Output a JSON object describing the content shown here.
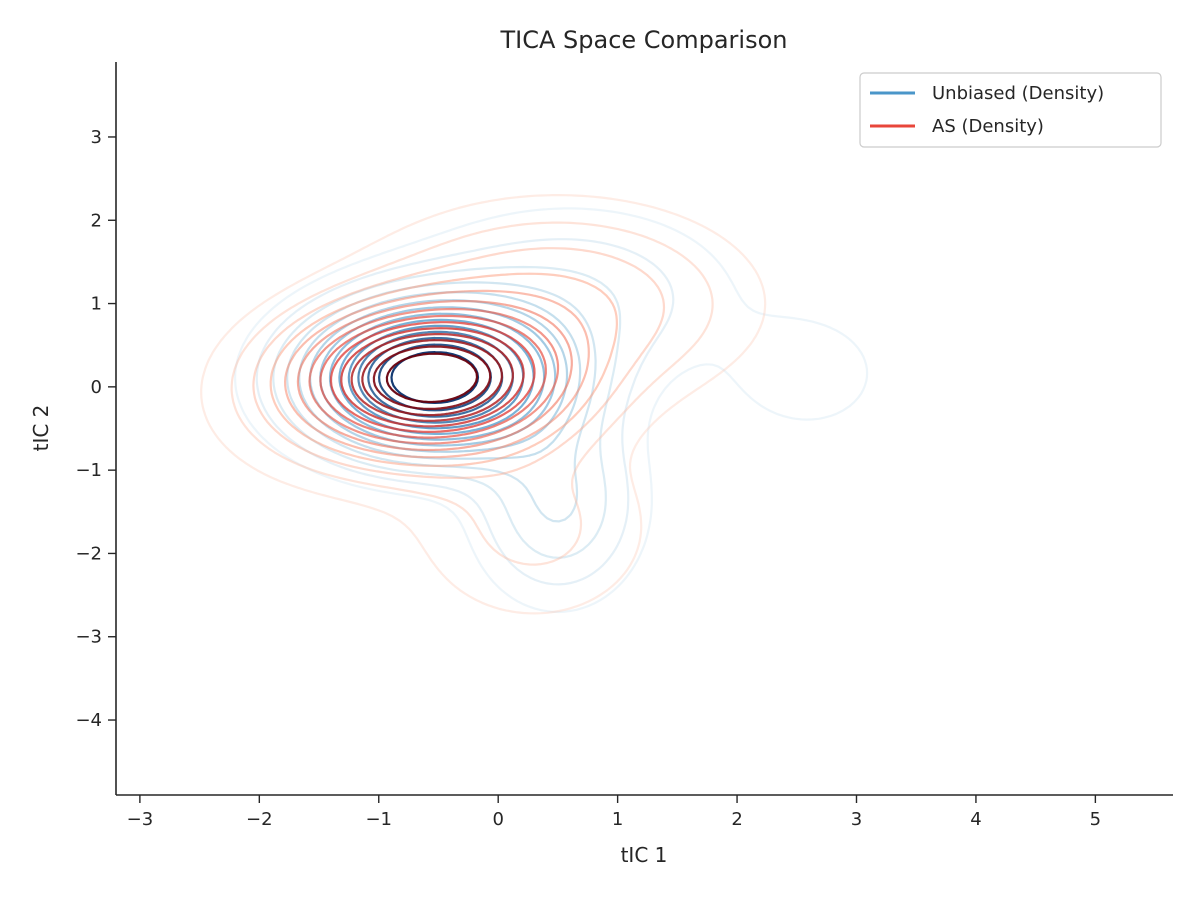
{
  "chart_data": {
    "type": "contour",
    "title": "TICA Space Comparison",
    "xlabel": "tIC 1",
    "ylabel": "tIC 2",
    "xlim": [
      -3.2,
      5.65
    ],
    "ylim": [
      -4.9,
      3.9
    ],
    "xticks": [
      -3,
      -2,
      -1,
      0,
      1,
      2,
      3,
      4,
      5
    ],
    "yticks": [
      -4,
      -3,
      -2,
      -1,
      0,
      1,
      2,
      3
    ],
    "xtick_labels": [
      "−3",
      "−2",
      "−1",
      "0",
      "1",
      "2",
      "3",
      "4",
      "5"
    ],
    "ytick_labels": [
      "−4",
      "−3",
      "−2",
      "−1",
      "0",
      "1",
      "2",
      "3"
    ],
    "grid": false,
    "legend_position": "top-right",
    "series": [
      {
        "name": "Unbiased (Density)",
        "color": "#4a96c9",
        "cmap": "Blues",
        "components": [
          {
            "mx": -0.55,
            "my": 0.1,
            "sx": 0.65,
            "sy": 0.55,
            "w": 1.0
          },
          {
            "mx": 0.5,
            "my": -1.4,
            "sx": 0.45,
            "sy": 0.75,
            "w": 0.18
          },
          {
            "mx": 2.6,
            "my": 0.15,
            "sx": 0.45,
            "sy": 0.5,
            "w": 0.07
          },
          {
            "mx": 0.6,
            "my": 1.1,
            "sx": 0.9,
            "sy": 0.7,
            "w": 0.12
          }
        ]
      },
      {
        "name": "AS (Density)",
        "color": "#e8463a",
        "cmap": "Reds",
        "components": [
          {
            "mx": -0.55,
            "my": 0.1,
            "sx": 0.65,
            "sy": 0.5,
            "w": 1.0
          },
          {
            "mx": 0.5,
            "my": 1.0,
            "sx": 1.0,
            "sy": 0.75,
            "w": 0.2
          },
          {
            "mx": 0.3,
            "my": -1.7,
            "sx": 0.7,
            "sy": 0.8,
            "w": 0.1
          },
          {
            "mx": -1.2,
            "my": -0.2,
            "sx": 0.8,
            "sy": 0.7,
            "w": 0.12
          }
        ]
      }
    ]
  }
}
